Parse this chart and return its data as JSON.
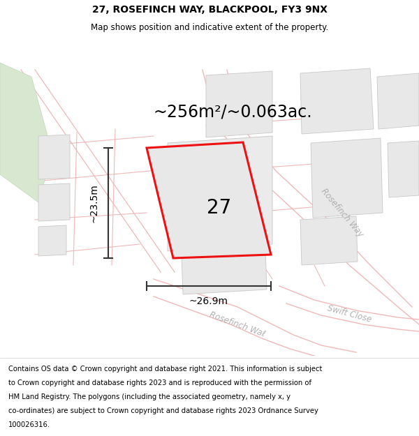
{
  "title_line1": "27, ROSEFINCH WAY, BLACKPOOL, FY3 9NX",
  "title_line2": "Map shows position and indicative extent of the property.",
  "area_text": "~256m²/~0.063ac.",
  "label_27": "27",
  "dim_width": "~26.9m",
  "dim_height": "~23.5m",
  "footer_text": "Contains OS data © Crown copyright and database right 2021. This information is subject to Crown copyright and database rights 2023 and is reproduced with the permission of HM Land Registry. The polygons (including the associated geometry, namely x, y co-ordinates) are subject to Crown copyright and database rights 2023 Ordnance Survey 100026316.",
  "map_bg": "#ffffff",
  "plot_fc": "#e8e8e8",
  "plot_ec": "#c8c8c8",
  "road_line_color": "#f0b8b8",
  "red_outline": "#ee1111",
  "green_patch_fc": "#d8e8d0",
  "green_patch_ec": "#c0d8b8",
  "road_label_color": "#b0b0b0",
  "dim_line_color": "#333333",
  "title_fontsize": 10,
  "subtitle_fontsize": 8.5,
  "area_fontsize": 17,
  "label_fontsize": 20,
  "dim_fontsize": 10,
  "footer_fontsize": 7.2
}
